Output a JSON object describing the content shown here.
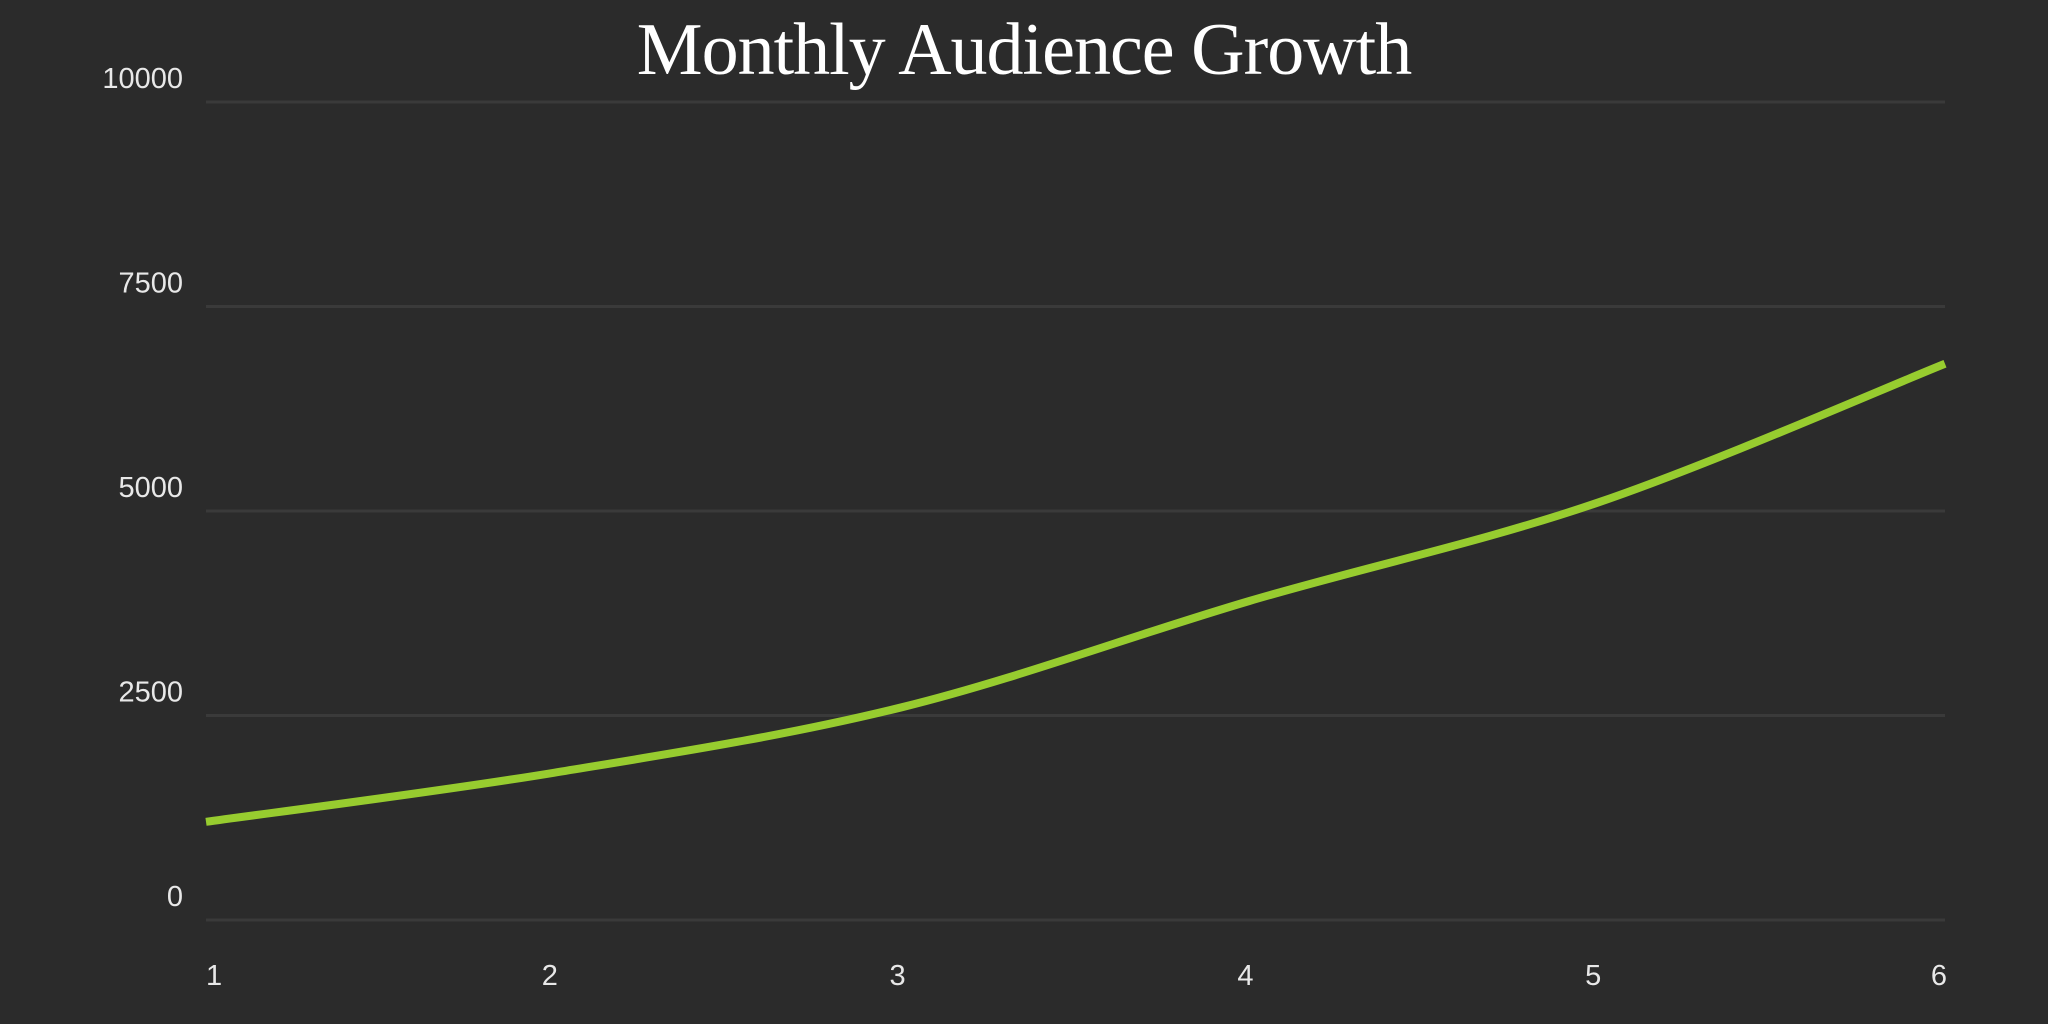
{
  "chart_data": {
    "type": "line",
    "title": "Monthly Audience Growth",
    "xlabel": "",
    "ylabel": "",
    "x": [
      1,
      2,
      3,
      4,
      5,
      6
    ],
    "series": [
      {
        "values": [
          1200,
          1800,
          2600,
          3900,
          5100,
          6800
        ],
        "color": "#97cc2f"
      }
    ],
    "xlim": [
      1,
      6
    ],
    "ylim": [
      0,
      10000
    ],
    "x_ticks": [
      "1",
      "2",
      "3",
      "4",
      "5",
      "6"
    ],
    "y_ticks": [
      "0",
      "2500",
      "5000",
      "7500",
      "10000"
    ],
    "grid": true,
    "smooth": true,
    "background": "#2b2b2b",
    "grid_color": "#3a3a3a"
  }
}
